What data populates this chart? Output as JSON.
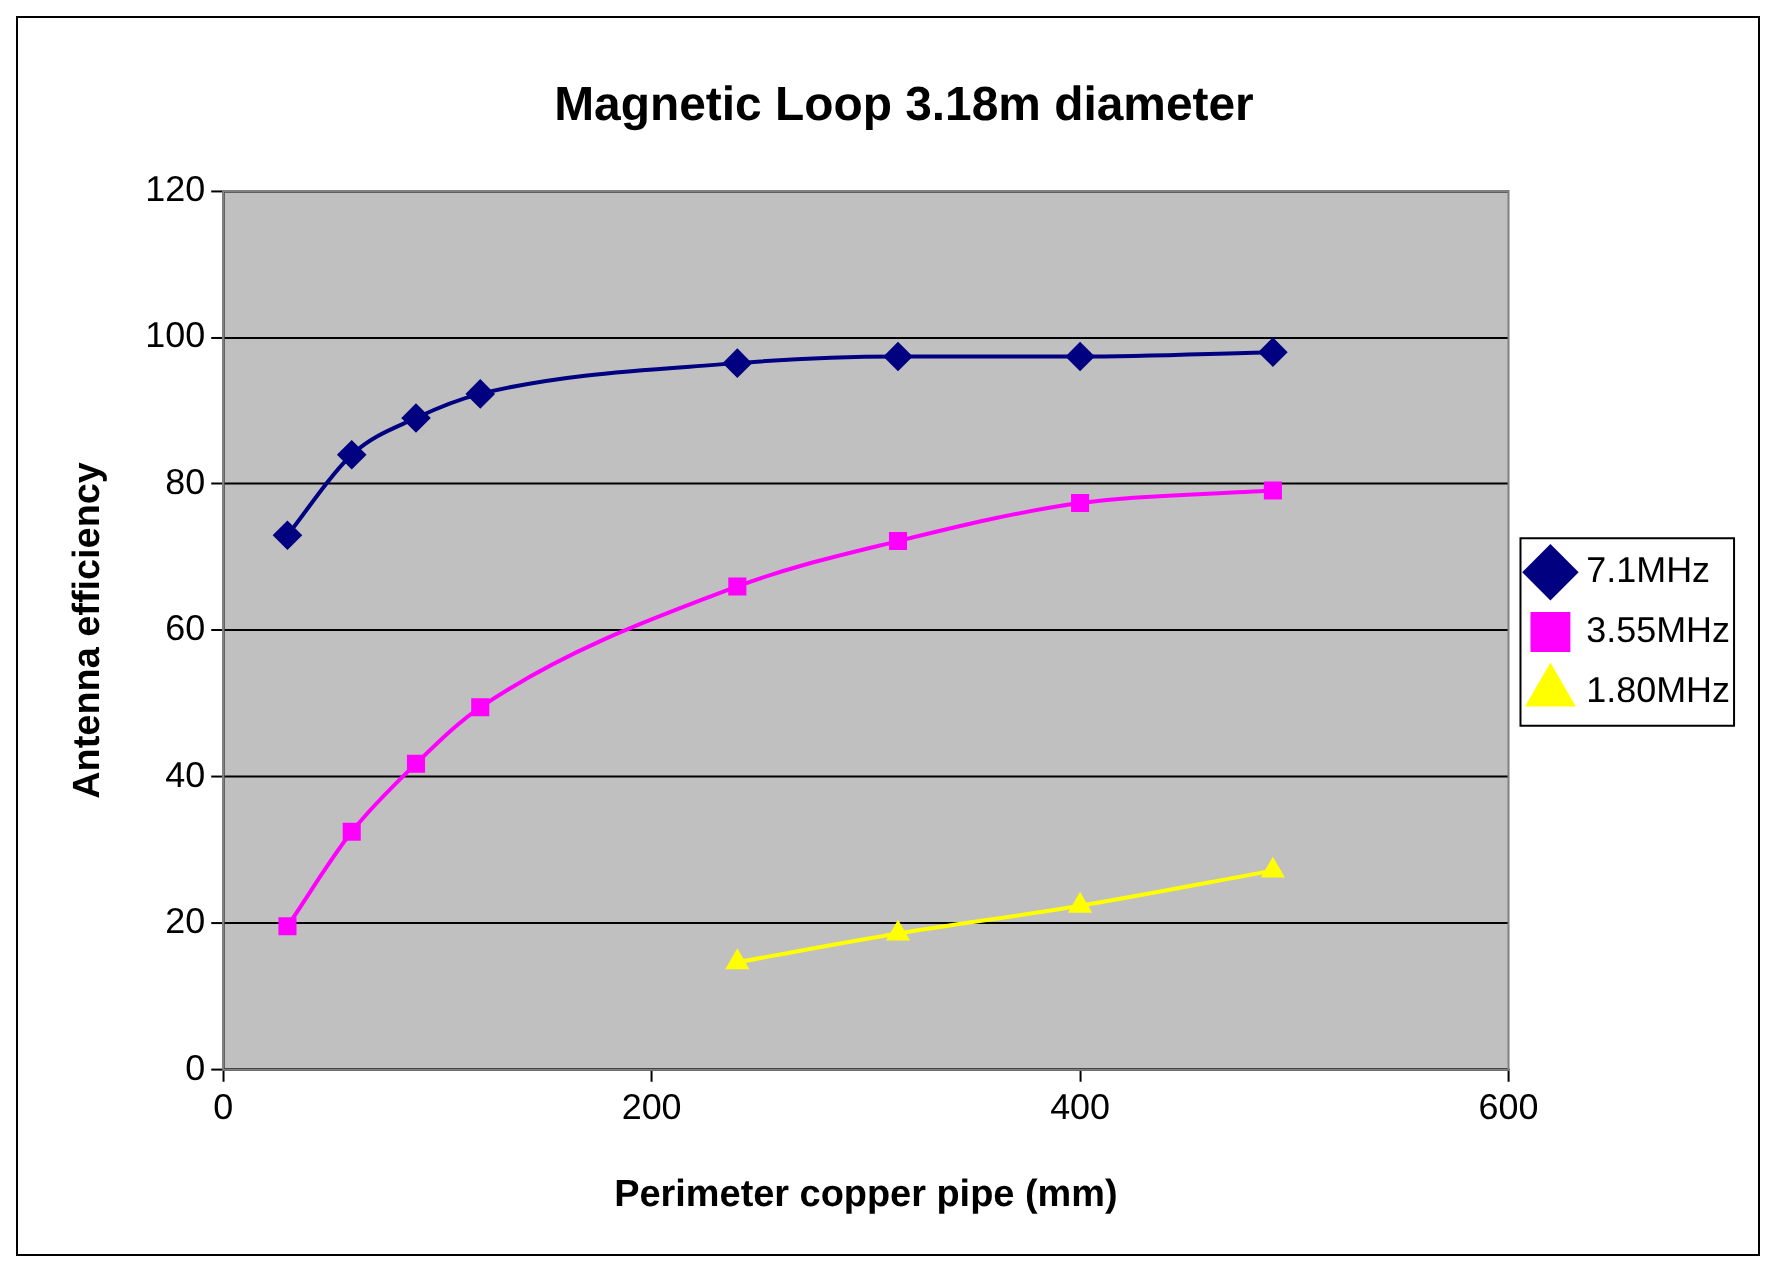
{
  "chart_data": {
    "type": "line",
    "title": "Magnetic Loop 3.18m diameter",
    "xlabel": "Perimeter copper pipe (mm)",
    "ylabel": "Antenna efficiency",
    "xlim": [
      0,
      600
    ],
    "xticks": [
      0,
      200,
      400,
      600
    ],
    "ylim": [
      0,
      120
    ],
    "yticks": [
      0,
      20,
      40,
      60,
      80,
      100,
      120
    ],
    "grid": "y",
    "legend": "right",
    "line_style": "solid",
    "series": [
      {
        "name": "7.1MHz",
        "color": "#000080",
        "marker": "diamond",
        "x": [
          30,
          60,
          90,
          120,
          240,
          315,
          400,
          490
        ],
        "values": [
          73,
          84,
          89,
          92.3,
          96.5,
          97.4,
          97.4,
          98
        ]
      },
      {
        "name": "3.55MHz",
        "color": "#ff00ff",
        "marker": "square",
        "x": [
          30,
          60,
          90,
          120,
          240,
          315,
          400,
          490
        ],
        "values": [
          19.6,
          32.5,
          41.8,
          49.5,
          66,
          72.2,
          77.4,
          79.1
        ]
      },
      {
        "name": "1.80MHz",
        "color": "#ffff00",
        "marker": "triangle",
        "x": [
          240,
          315,
          400,
          490
        ],
        "values": [
          14.7,
          18.6,
          22.4,
          27.2
        ]
      }
    ]
  }
}
